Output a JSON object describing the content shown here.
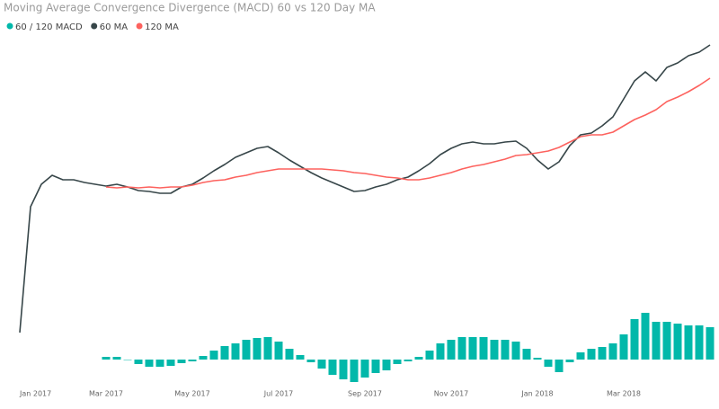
{
  "chart_data": {
    "type": "combo",
    "title": "Moving Average Convergence Divergence  (MACD) 60 vs 120 Day MA",
    "categories": [
      "Jan 2017",
      null,
      null,
      null,
      null,
      null,
      null,
      null,
      "Mar 2017",
      null,
      null,
      null,
      null,
      null,
      null,
      null,
      "May 2017",
      null,
      null,
      null,
      null,
      null,
      null,
      null,
      "Jul 2017",
      null,
      null,
      null,
      null,
      null,
      null,
      null,
      "Sep 2017",
      null,
      null,
      null,
      null,
      null,
      null,
      null,
      "Nov 2017",
      null,
      null,
      null,
      null,
      null,
      null,
      null,
      "Jan 2018",
      null,
      null,
      null,
      null,
      null,
      null,
      null,
      "Mar 2018",
      null,
      null,
      null,
      null,
      null,
      null,
      null,
      null
    ],
    "ylim": [
      0,
      400
    ],
    "y2lim": [
      -20,
      380
    ],
    "series": [
      {
        "name": "60 / 120 MACD",
        "color": "#01B8AA",
        "type": "bar",
        "axis": "y2",
        "values": [
          null,
          null,
          null,
          null,
          null,
          null,
          null,
          null,
          3,
          3,
          0,
          -5,
          -8,
          -8,
          -7,
          -4,
          -2,
          4,
          10,
          15,
          18,
          22,
          24,
          25,
          20,
          12,
          5,
          -3,
          -10,
          -17,
          -22,
          -25,
          -20,
          -15,
          -12,
          -5,
          -2,
          3,
          10,
          18,
          22,
          25,
          25,
          25,
          22,
          22,
          20,
          12,
          2,
          -8,
          -14,
          -3,
          8,
          12,
          14,
          18,
          28,
          45,
          52,
          42,
          42,
          40,
          38,
          38,
          36
        ]
      },
      {
        "name": "60 MA",
        "color": "#374649",
        "type": "line",
        "values": [
          50,
          190,
          215,
          225,
          220,
          220,
          217,
          215,
          213,
          215,
          212,
          208,
          207,
          205,
          205,
          212,
          215,
          222,
          230,
          237,
          245,
          250,
          255,
          257,
          250,
          242,
          235,
          228,
          222,
          217,
          212,
          207,
          208,
          212,
          215,
          220,
          223,
          230,
          238,
          248,
          255,
          260,
          262,
          260,
          260,
          262,
          263,
          255,
          242,
          232,
          240,
          258,
          270,
          272,
          280,
          290,
          310,
          330,
          340,
          330,
          345,
          350,
          358,
          362,
          370
        ]
      },
      {
        "name": "120 MA",
        "color": "#FD625E",
        "type": "line",
        "values": [
          null,
          null,
          null,
          null,
          null,
          null,
          null,
          null,
          212,
          211,
          212,
          211,
          212,
          211,
          212,
          212,
          214,
          217,
          219,
          220,
          223,
          225,
          228,
          230,
          232,
          232,
          232,
          232,
          232,
          231,
          230,
          228,
          227,
          225,
          223,
          222,
          220,
          220,
          222,
          225,
          228,
          232,
          235,
          237,
          240,
          243,
          247,
          248,
          250,
          252,
          256,
          262,
          268,
          270,
          270,
          273,
          280,
          287,
          292,
          298,
          307,
          312,
          318,
          325,
          333
        ]
      }
    ]
  }
}
